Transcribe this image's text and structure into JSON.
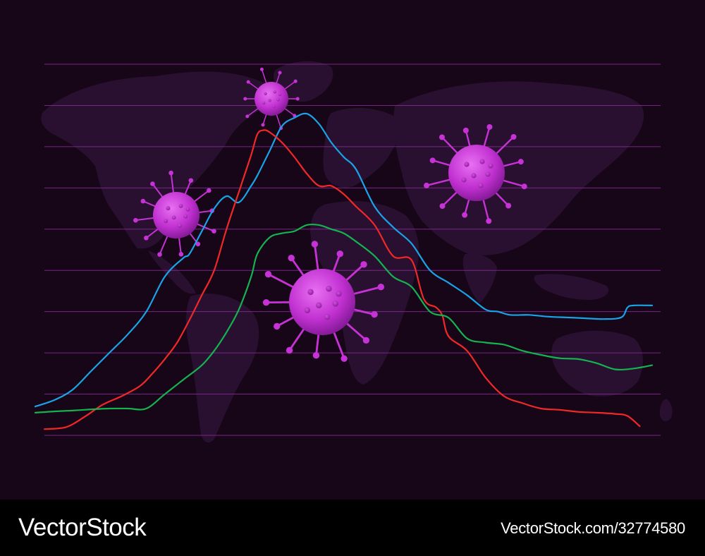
{
  "chart_data": {
    "type": "line",
    "title": "",
    "xlabel": "",
    "ylabel": "",
    "xlim": [
      0,
      100
    ],
    "ylim": [
      0,
      9
    ],
    "grid": true,
    "gridline_count": 10,
    "series": [
      {
        "color": "#1aa3e6",
        "x": [
          0,
          3,
          6,
          9,
          12,
          15,
          18,
          21,
          24,
          25,
          27,
          29,
          31,
          33,
          35,
          36,
          38,
          40,
          42,
          44,
          46,
          48,
          50,
          52,
          55,
          58,
          61,
          64,
          67,
          70,
          73,
          75,
          77,
          80,
          83,
          86,
          89,
          92,
          95,
          96,
          97,
          100
        ],
        "y": [
          0.7,
          0.85,
          1.1,
          1.55,
          2.0,
          2.45,
          3.0,
          3.85,
          4.3,
          4.4,
          4.95,
          5.5,
          5.8,
          5.65,
          6.05,
          6.3,
          6.9,
          7.5,
          7.7,
          7.8,
          7.55,
          7.1,
          6.75,
          6.45,
          5.55,
          5.05,
          4.65,
          4.0,
          3.7,
          3.4,
          3.05,
          3.0,
          2.92,
          2.92,
          2.88,
          2.86,
          2.84,
          2.82,
          2.86,
          3.1,
          3.15,
          3.15
        ]
      },
      {
        "color": "#f02828",
        "x": [
          1.5,
          5,
          8,
          11,
          14,
          17,
          19,
          21,
          23,
          25,
          27,
          29,
          31,
          33,
          35,
          36,
          37,
          38,
          40,
          42,
          44,
          46,
          48,
          50,
          52,
          55,
          58,
          61,
          63,
          65,
          66,
          67,
          70,
          73,
          76,
          79,
          82,
          85,
          88,
          91,
          94,
          96,
          98
        ],
        "y": [
          0.15,
          0.2,
          0.45,
          0.75,
          0.95,
          1.2,
          1.5,
          1.85,
          2.25,
          2.8,
          3.4,
          4.0,
          5.0,
          5.9,
          6.8,
          7.3,
          7.4,
          7.35,
          7.1,
          6.75,
          6.35,
          6.05,
          6.05,
          5.85,
          5.55,
          5.1,
          4.35,
          4.25,
          3.3,
          3.1,
          2.9,
          2.4,
          2.05,
          1.4,
          0.95,
          0.78,
          0.65,
          0.62,
          0.57,
          0.55,
          0.52,
          0.47,
          0.22
        ]
      },
      {
        "color": "#15b350",
        "x": [
          0,
          3,
          6,
          9,
          12,
          15,
          18,
          21,
          24,
          27,
          29,
          31,
          33,
          35,
          36,
          38,
          40,
          42,
          44,
          46,
          48,
          50,
          52,
          55,
          58,
          61,
          64,
          67,
          70,
          73,
          76,
          79,
          82,
          85,
          88,
          91,
          94,
          97,
          100
        ],
        "y": [
          0.55,
          0.58,
          0.6,
          0.63,
          0.65,
          0.65,
          0.65,
          1.0,
          1.35,
          1.7,
          2.05,
          2.5,
          3.05,
          3.85,
          4.4,
          4.8,
          4.9,
          4.95,
          5.1,
          5.1,
          5.0,
          4.9,
          4.7,
          4.35,
          3.85,
          3.6,
          3.0,
          2.85,
          2.35,
          2.25,
          2.2,
          2.05,
          1.95,
          1.87,
          1.85,
          1.75,
          1.6,
          1.62,
          1.7
        ]
      }
    ]
  },
  "footer": {
    "brand": "VectorStock",
    "image_id": "VectorStock.com/32774580"
  },
  "decor": {
    "background_color": "#170618",
    "gridline_color": "#8a2a98",
    "map_color": "#2a1030",
    "virus_color": "#c732d6",
    "virus_icons": [
      "virus-icon",
      "virus-icon",
      "virus-icon",
      "virus-icon"
    ],
    "map_icon": "world-map-silhouette"
  }
}
